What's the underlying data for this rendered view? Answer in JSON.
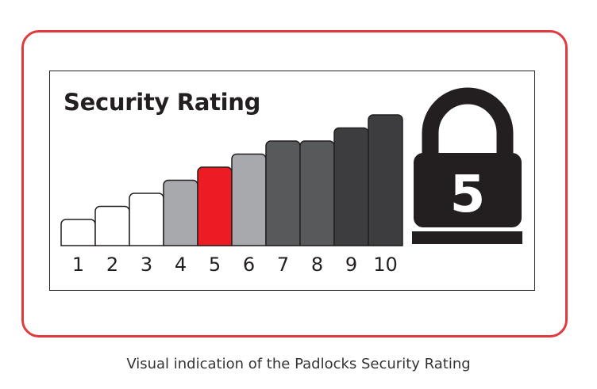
{
  "chart_data": {
    "type": "bar",
    "title": "Security Rating",
    "categories": [
      "1",
      "2",
      "3",
      "4",
      "5",
      "6",
      "7",
      "8",
      "9",
      "10"
    ],
    "values": [
      1,
      2,
      3,
      4,
      5,
      6,
      7,
      7,
      8,
      9
    ],
    "highlight_index": 4,
    "colors": [
      "#ffffff",
      "#ffffff",
      "#ffffff",
      "#a7a9ac",
      "#ed1c24",
      "#a7a9ac",
      "#58595b",
      "#58595b",
      "#3d3d3f",
      "#3d3d3f"
    ],
    "stroke_color": "#231f20",
    "xlabel": "",
    "ylabel": ""
  },
  "padlock": {
    "icon": "padlock-icon",
    "rating": "5",
    "color": "#231f20"
  },
  "caption": "Visual indication of the Padlocks Security Rating",
  "frame_color": "#e03a3e"
}
